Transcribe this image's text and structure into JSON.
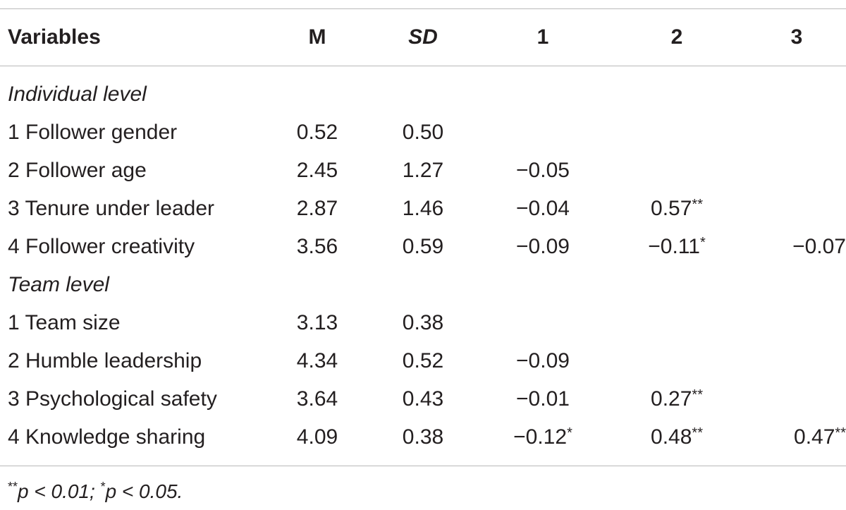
{
  "table": {
    "headers": {
      "variables": "Variables",
      "m": "M",
      "sd": "SD",
      "c1": "1",
      "c2": "2",
      "c3": "3"
    },
    "sections": [
      {
        "label": "Individual level",
        "rows": [
          {
            "variable": "1 Follower gender",
            "m": "0.52",
            "sd": "0.50",
            "c1": "",
            "c1_sig": "",
            "c2": "",
            "c2_sig": "",
            "c3": "",
            "c3_sig": ""
          },
          {
            "variable": "2 Follower age",
            "m": "2.45",
            "sd": "1.27",
            "c1": "−0.05",
            "c1_sig": "",
            "c2": "",
            "c2_sig": "",
            "c3": "",
            "c3_sig": ""
          },
          {
            "variable": "3 Tenure under leader",
            "m": "2.87",
            "sd": "1.46",
            "c1": "−0.04",
            "c1_sig": "",
            "c2": "0.57",
            "c2_sig": "**",
            "c3": "",
            "c3_sig": ""
          },
          {
            "variable": "4 Follower creativity",
            "m": "3.56",
            "sd": "0.59",
            "c1": "−0.09",
            "c1_sig": "",
            "c2": "−0.11",
            "c2_sig": "*",
            "c3": "−0.07",
            "c3_sig": ""
          }
        ]
      },
      {
        "label": "Team level",
        "rows": [
          {
            "variable": "1 Team size",
            "m": "3.13",
            "sd": "0.38",
            "c1": "",
            "c1_sig": "",
            "c2": "",
            "c2_sig": "",
            "c3": "",
            "c3_sig": ""
          },
          {
            "variable": "2 Humble leadership",
            "m": "4.34",
            "sd": "0.52",
            "c1": "−0.09",
            "c1_sig": "",
            "c2": "",
            "c2_sig": "",
            "c3": "",
            "c3_sig": ""
          },
          {
            "variable": "3 Psychological safety",
            "m": "3.64",
            "sd": "0.43",
            "c1": "−0.01",
            "c1_sig": "",
            "c2": "0.27",
            "c2_sig": "**",
            "c3": "",
            "c3_sig": ""
          },
          {
            "variable": "4 Knowledge sharing",
            "m": "4.09",
            "sd": "0.38",
            "c1": "−0.12",
            "c1_sig": "*",
            "c2": "0.48",
            "c2_sig": "**",
            "c3": "0.47",
            "c3_sig": "**"
          }
        ]
      }
    ]
  },
  "footnote": {
    "star2": "**",
    "p1": "p < 0.01; ",
    "star1": "*",
    "p2": "p < 0.05."
  }
}
